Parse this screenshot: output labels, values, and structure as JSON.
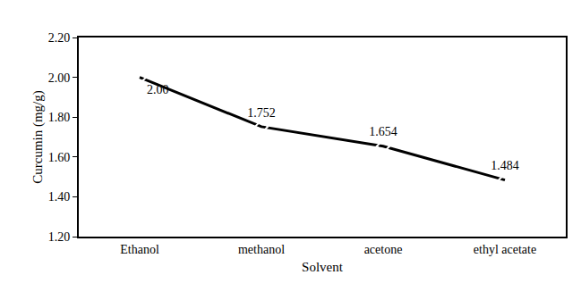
{
  "chart_data": {
    "type": "line",
    "x_label": "Solvent",
    "y_label": "Curcumin (mg/g)",
    "categories": [
      "Ethanol",
      "methanol",
      "acetone",
      "ethyl acetate"
    ],
    "values": [
      2.0,
      1.752,
      1.654,
      1.484
    ],
    "value_labels": [
      "2.00",
      "1.752",
      "1.654",
      "1.484"
    ],
    "data_labels": true,
    "color": "#000000",
    "marker": "diamond-open",
    "line_style": "solid",
    "ylim": [
      1.2,
      2.2
    ],
    "yticks": [
      {
        "value": 1.2,
        "label": "1.20"
      },
      {
        "value": 1.4,
        "label": "1.40"
      },
      {
        "value": 1.6,
        "label": "1.60"
      },
      {
        "value": 1.8,
        "label": "1.80"
      },
      {
        "value": 2.0,
        "label": "2.00"
      },
      {
        "value": 2.2,
        "label": "2.20"
      }
    ],
    "grid": false
  }
}
